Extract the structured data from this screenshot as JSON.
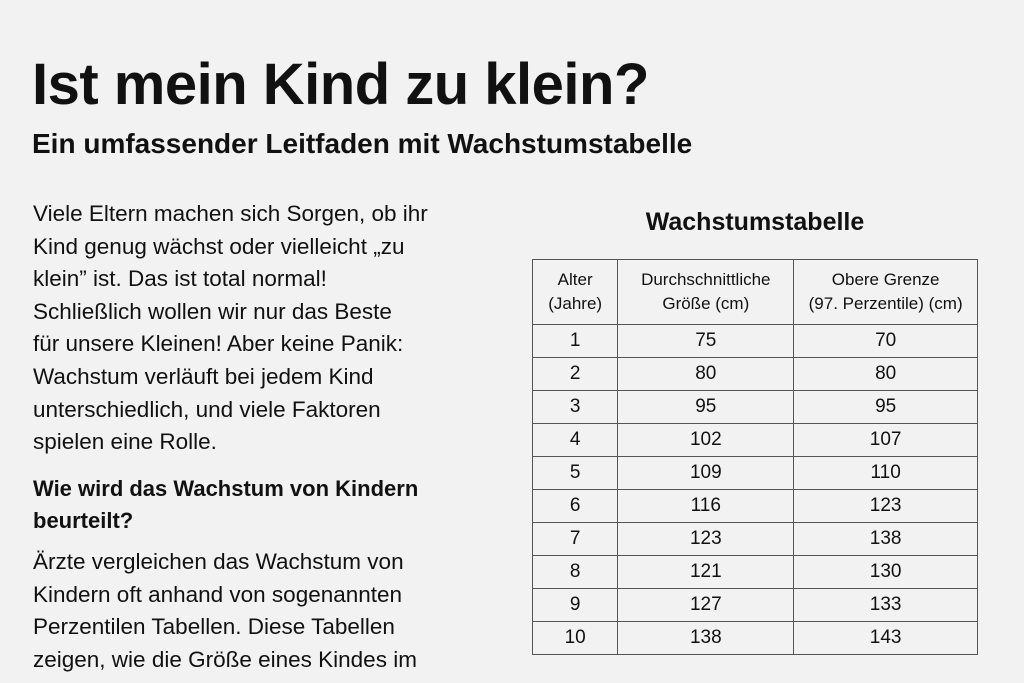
{
  "title": "Ist mein Kind zu klein?",
  "subtitle": "Ein umfassender Leitfaden mit Wachstumstabelle",
  "intro_lines": [
    "Viele Eltern machen sich Sorgen, ob ihr",
    "Kind genug wächst oder vielleicht „zu",
    "klein” ist. Das ist total normal!",
    "Schließlich wollen wir nur das Beste",
    "für unsere Kleinen! Aber keine Panik:",
    "Wachstum verläuft bei jedem Kind",
    "unterschiedlich, und viele Faktoren",
    "spielen eine Rolle."
  ],
  "section_heading_lines": [
    "Wie wird das Wachstum von Kindern",
    "beurteilt?"
  ],
  "section_lines": [
    "Ärzte vergleichen das Wachstum von",
    "Kindern oft anhand von sogenannten",
    "Perzentilen Tabellen. Diese Tabellen",
    "zeigen, wie die Größe eines Kindes im"
  ],
  "table": {
    "title": "Wachstumstabelle",
    "headers": [
      [
        "Alter",
        "(Jahre)"
      ],
      [
        "Durchschnittliche",
        "Größe (cm)"
      ],
      [
        "Obere Grenze",
        "(97. Perzentile) (cm)"
      ]
    ],
    "rows": [
      [
        "1",
        "75",
        "70"
      ],
      [
        "2",
        "80",
        "80"
      ],
      [
        "3",
        "95",
        "95"
      ],
      [
        "4",
        "102",
        "107"
      ],
      [
        "5",
        "109",
        "110"
      ],
      [
        "6",
        "116",
        "123"
      ],
      [
        "7",
        "123",
        "138"
      ],
      [
        "8",
        "121",
        "130"
      ],
      [
        "9",
        "127",
        "133"
      ],
      [
        "10",
        "138",
        "143"
      ]
    ]
  }
}
